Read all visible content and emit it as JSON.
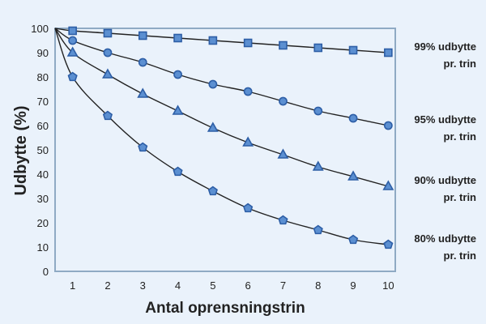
{
  "chart_data": {
    "type": "line",
    "xlabel": "Antal oprensningstrin",
    "ylabel": "Udbytte (%)",
    "xlim": [
      0.5,
      10.2
    ],
    "ylim": [
      0,
      100
    ],
    "x_ticks": [
      1,
      2,
      3,
      4,
      5,
      6,
      7,
      8,
      9,
      10
    ],
    "y_ticks": [
      0,
      10,
      20,
      30,
      40,
      50,
      60,
      70,
      80,
      90,
      100
    ],
    "grid": false,
    "colors": {
      "line": "#222222",
      "marker_fill": "#5b8fd1",
      "marker_stroke": "#2d5ea6",
      "frame": "#8faac4",
      "background": "#eaf2fb"
    },
    "series": [
      {
        "label_lines": [
          "99% udbytte",
          "pr. trin"
        ],
        "marker": "square",
        "x": [
          1,
          2,
          3,
          4,
          5,
          6,
          7,
          8,
          9,
          10
        ],
        "values": [
          99,
          98,
          97,
          96,
          95,
          94,
          93,
          92,
          91,
          90
        ]
      },
      {
        "label_lines": [
          "95% udbytte",
          "pr. trin"
        ],
        "marker": "circle",
        "x": [
          1,
          2,
          3,
          4,
          5,
          6,
          7,
          8,
          9,
          10
        ],
        "values": [
          95,
          90,
          86,
          81,
          77,
          74,
          70,
          66,
          63,
          60
        ]
      },
      {
        "label_lines": [
          "90% udbytte",
          "pr. trin"
        ],
        "marker": "triangle",
        "x": [
          1,
          2,
          3,
          4,
          5,
          6,
          7,
          8,
          9,
          10
        ],
        "values": [
          90,
          81,
          73,
          66,
          59,
          53,
          48,
          43,
          39,
          35
        ]
      },
      {
        "label_lines": [
          "80% udbytte",
          "pr. trin"
        ],
        "marker": "pentagon",
        "x": [
          1,
          2,
          3,
          4,
          5,
          6,
          7,
          8,
          9,
          10
        ],
        "values": [
          80,
          64,
          51,
          41,
          33,
          26,
          21,
          17,
          13,
          11
        ]
      }
    ]
  }
}
